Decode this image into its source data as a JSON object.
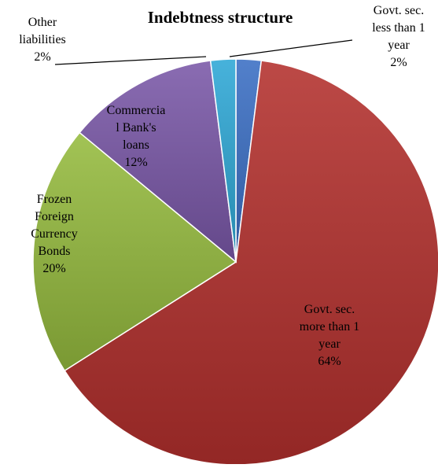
{
  "chart_data": {
    "type": "pie",
    "title": "Indebtness structure",
    "slices": [
      {
        "name": "Govt. sec. less than 1 year",
        "value": 2,
        "label_lines": [
          "Govt. sec.",
          "less than 1",
          "year",
          "2%"
        ],
        "color": "#3a6fc4"
      },
      {
        "name": "Govt. sec. more than 1 year",
        "value": 64,
        "label_lines": [
          "Govt. sec.",
          "more than 1",
          "year",
          "64%"
        ],
        "color": "#b3302d"
      },
      {
        "name": "Frozen Foreign Currency Bonds",
        "value": 20,
        "label_lines": [
          "Frozen",
          "Foreign",
          "Currency",
          "Bonds",
          "20%"
        ],
        "color": "#95bb3e"
      },
      {
        "name": "Commercial Bank's loans",
        "value": 12,
        "label_lines": [
          "Commercia",
          "l Bank's",
          "loans",
          "12%"
        ],
        "color": "#7a58a8"
      },
      {
        "name": "Other liabilities",
        "value": 2,
        "label_lines": [
          "Other",
          "liabilities",
          "2%"
        ],
        "color": "#2ea8d6"
      }
    ]
  }
}
